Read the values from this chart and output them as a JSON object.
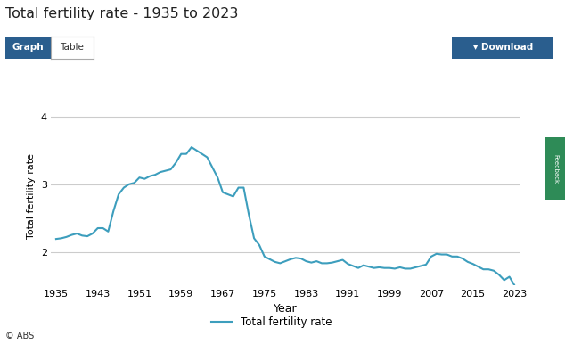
{
  "title": "Total fertility rate - 1935 to 2023",
  "xlabel": "Year",
  "ylabel": "Total fertility rate",
  "legend_label": "Total fertility rate",
  "line_color": "#3d9ebd",
  "background_color": "#ffffff",
  "plot_bg_color": "#ffffff",
  "grid_color": "#cccccc",
  "ylim": [
    1.5,
    4.15
  ],
  "yticks": [
    2,
    3,
    4
  ],
  "xticks": [
    1935,
    1943,
    1951,
    1959,
    1967,
    1975,
    1983,
    1991,
    1999,
    2007,
    2015,
    2023
  ],
  "xlim": [
    1934,
    2024
  ],
  "years": [
    1935,
    1936,
    1937,
    1938,
    1939,
    1940,
    1941,
    1942,
    1943,
    1944,
    1945,
    1946,
    1947,
    1948,
    1949,
    1950,
    1951,
    1952,
    1953,
    1954,
    1955,
    1956,
    1957,
    1958,
    1959,
    1960,
    1961,
    1962,
    1963,
    1964,
    1965,
    1966,
    1967,
    1968,
    1969,
    1970,
    1971,
    1972,
    1973,
    1974,
    1975,
    1976,
    1977,
    1978,
    1979,
    1980,
    1981,
    1982,
    1983,
    1984,
    1985,
    1986,
    1987,
    1988,
    1989,
    1990,
    1991,
    1992,
    1993,
    1994,
    1995,
    1996,
    1997,
    1998,
    1999,
    2000,
    2001,
    2002,
    2003,
    2004,
    2005,
    2006,
    2007,
    2008,
    2009,
    2010,
    2011,
    2012,
    2013,
    2014,
    2015,
    2016,
    2017,
    2018,
    2019,
    2020,
    2021,
    2022,
    2023
  ],
  "values": [
    2.19,
    2.2,
    2.22,
    2.25,
    2.27,
    2.24,
    2.23,
    2.27,
    2.35,
    2.35,
    2.3,
    2.6,
    2.85,
    2.95,
    3.0,
    3.02,
    3.1,
    3.08,
    3.12,
    3.14,
    3.18,
    3.2,
    3.22,
    3.32,
    3.45,
    3.45,
    3.55,
    3.5,
    3.45,
    3.4,
    3.25,
    3.1,
    2.88,
    2.85,
    2.82,
    2.95,
    2.95,
    2.55,
    2.2,
    2.1,
    1.93,
    1.89,
    1.85,
    1.83,
    1.86,
    1.89,
    1.91,
    1.9,
    1.86,
    1.84,
    1.86,
    1.83,
    1.83,
    1.84,
    1.86,
    1.88,
    1.82,
    1.79,
    1.76,
    1.8,
    1.78,
    1.76,
    1.77,
    1.76,
    1.76,
    1.75,
    1.77,
    1.75,
    1.75,
    1.77,
    1.79,
    1.81,
    1.93,
    1.97,
    1.96,
    1.96,
    1.93,
    1.93,
    1.9,
    1.85,
    1.82,
    1.78,
    1.74,
    1.74,
    1.72,
    1.66,
    1.58,
    1.63,
    1.5
  ],
  "btn_graph_color": "#2a5e8e",
  "btn_table_color": "#ffffff",
  "btn_download_color": "#2a5e8e",
  "abs_label": "© ABS",
  "feedback_color": "#2e8b57"
}
